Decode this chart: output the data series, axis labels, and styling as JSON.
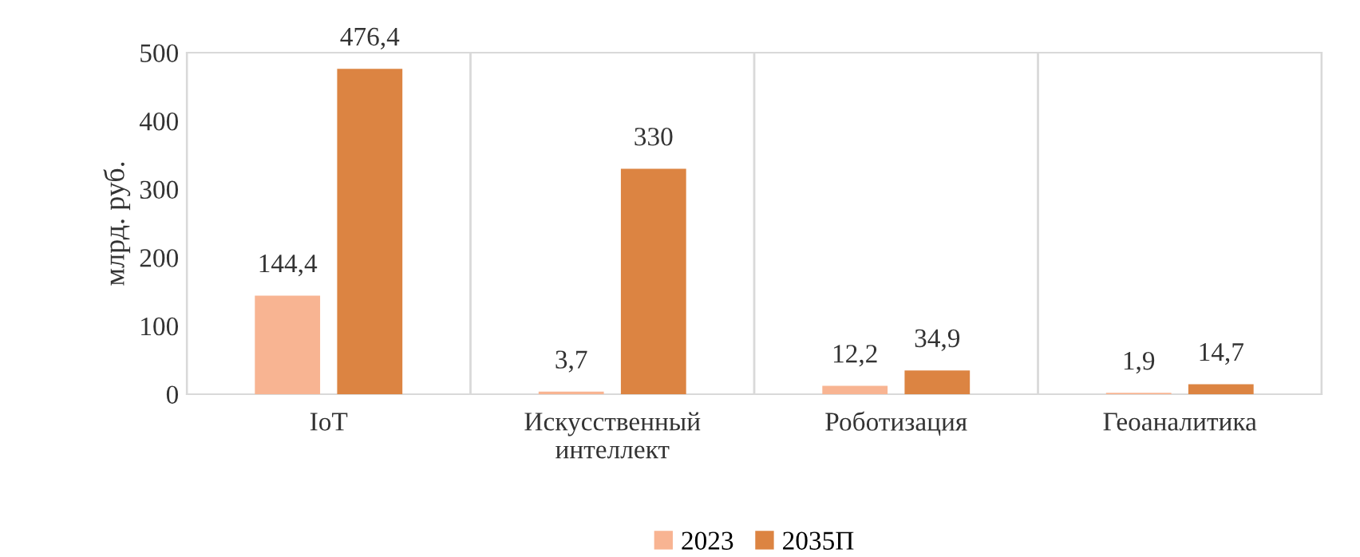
{
  "chart_data": {
    "type": "bar",
    "ylabel": "млрд. руб.",
    "categories": [
      "IoT",
      "Искусственный\nинтеллект",
      "Роботизация",
      "Геоаналитика"
    ],
    "series": [
      {
        "name": "2023",
        "color": "#f8b492",
        "values": [
          144.4,
          3.7,
          12.2,
          1.9
        ],
        "value_labels": [
          "144,4",
          "3,7",
          "12,2",
          "1,9"
        ]
      },
      {
        "name": "2035П",
        "color": "#dc8442",
        "values": [
          476.4,
          330,
          34.9,
          14.7
        ],
        "value_labels": [
          "476,4",
          "330",
          "34,9",
          "14,7"
        ]
      }
    ],
    "ylim": [
      0,
      500
    ],
    "yticks": [
      0,
      100,
      200,
      300,
      400,
      500
    ],
    "grid": "x",
    "legend": "bottom"
  }
}
